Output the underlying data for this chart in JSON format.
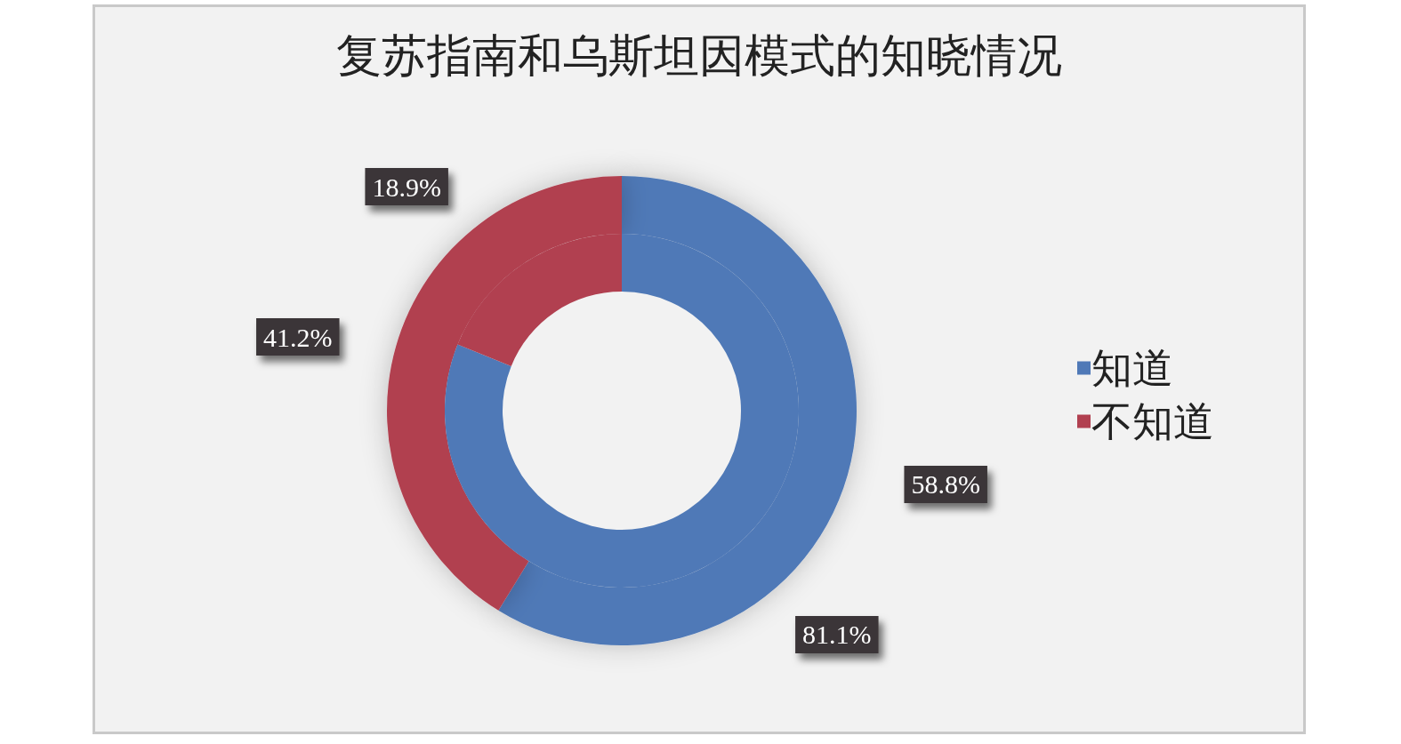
{
  "chart_data": {
    "type": "donut",
    "title": "复苏指南和乌斯坦因模式的知晓情况",
    "categories": [
      "知道",
      "不知道"
    ],
    "colors": [
      "#4f79b7",
      "#b14050"
    ],
    "series": [
      {
        "values": [
          81.1,
          18.9
        ],
        "value_labels": [
          "81.1%",
          "18.9%"
        ]
      },
      {
        "values": [
          58.8,
          41.2
        ],
        "value_labels": [
          "58.8%",
          "41.2%"
        ]
      }
    ],
    "legend": "right"
  }
}
